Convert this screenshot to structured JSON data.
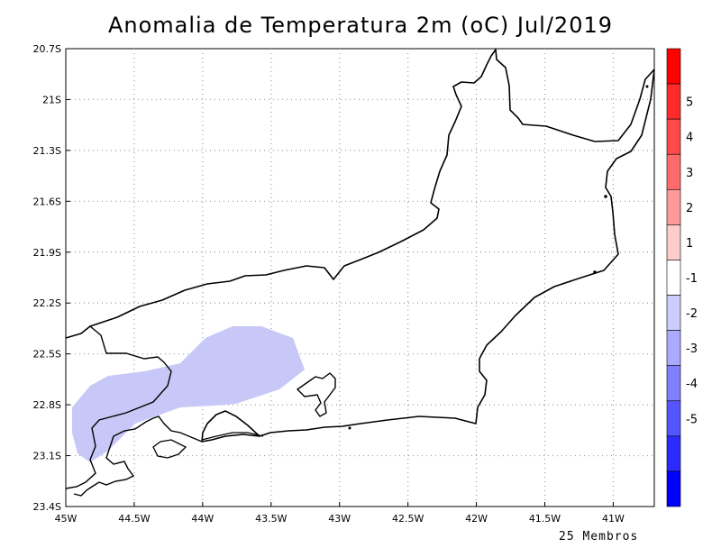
{
  "title": "Anomalia de Temperatura 2m (oC) Jul/2019",
  "footer": "25 Membros",
  "map": {
    "lon_range": [
      -45,
      -40.7
    ],
    "lat_range": [
      -20.7,
      -23.4
    ],
    "x_ticks": [
      {
        "value": -45,
        "label": "45W"
      },
      {
        "value": -44.5,
        "label": "44.5W"
      },
      {
        "value": -44,
        "label": "44W"
      },
      {
        "value": -43.5,
        "label": "43.5W"
      },
      {
        "value": -43,
        "label": "43W"
      },
      {
        "value": -42.5,
        "label": "42.5W"
      },
      {
        "value": -42,
        "label": "42W"
      },
      {
        "value": -41.5,
        "label": "41.5W"
      },
      {
        "value": -41,
        "label": "41W"
      }
    ],
    "y_ticks": [
      {
        "value": -20.7,
        "label": "20.7S"
      },
      {
        "value": -21.0,
        "label": "21S"
      },
      {
        "value": -21.3,
        "label": "21.3S"
      },
      {
        "value": -21.6,
        "label": "21.6S"
      },
      {
        "value": -21.9,
        "label": "21.9S"
      },
      {
        "value": -22.2,
        "label": "22.2S"
      },
      {
        "value": -22.5,
        "label": "22.5S"
      },
      {
        "value": -22.8,
        "label": "22.8S"
      },
      {
        "value": -23.1,
        "label": "23.1S"
      },
      {
        "value": -23.4,
        "label": "23.4S"
      }
    ],
    "gridlines": true
  },
  "colorbar": {
    "bins": [
      {
        "color": "#ff0000"
      },
      {
        "color": "#ff2b2b"
      },
      {
        "color": "#ff4a4a"
      },
      {
        "color": "#ff6b6b"
      },
      {
        "color": "#ff9a9a"
      },
      {
        "color": "#ffcccc"
      },
      {
        "color": "#ffffff"
      },
      {
        "color": "#ccccff"
      },
      {
        "color": "#aaaaff"
      },
      {
        "color": "#8080ff"
      },
      {
        "color": "#5555ff"
      },
      {
        "color": "#2b2bff"
      },
      {
        "color": "#0000ff"
      }
    ],
    "labels": [
      "5",
      "4",
      "3",
      "2",
      "1",
      "-1",
      "-2",
      "-3",
      "-4",
      "-5"
    ]
  },
  "anomaly_region": {
    "level": "-1 to -2",
    "color": "#c8c8f8"
  }
}
